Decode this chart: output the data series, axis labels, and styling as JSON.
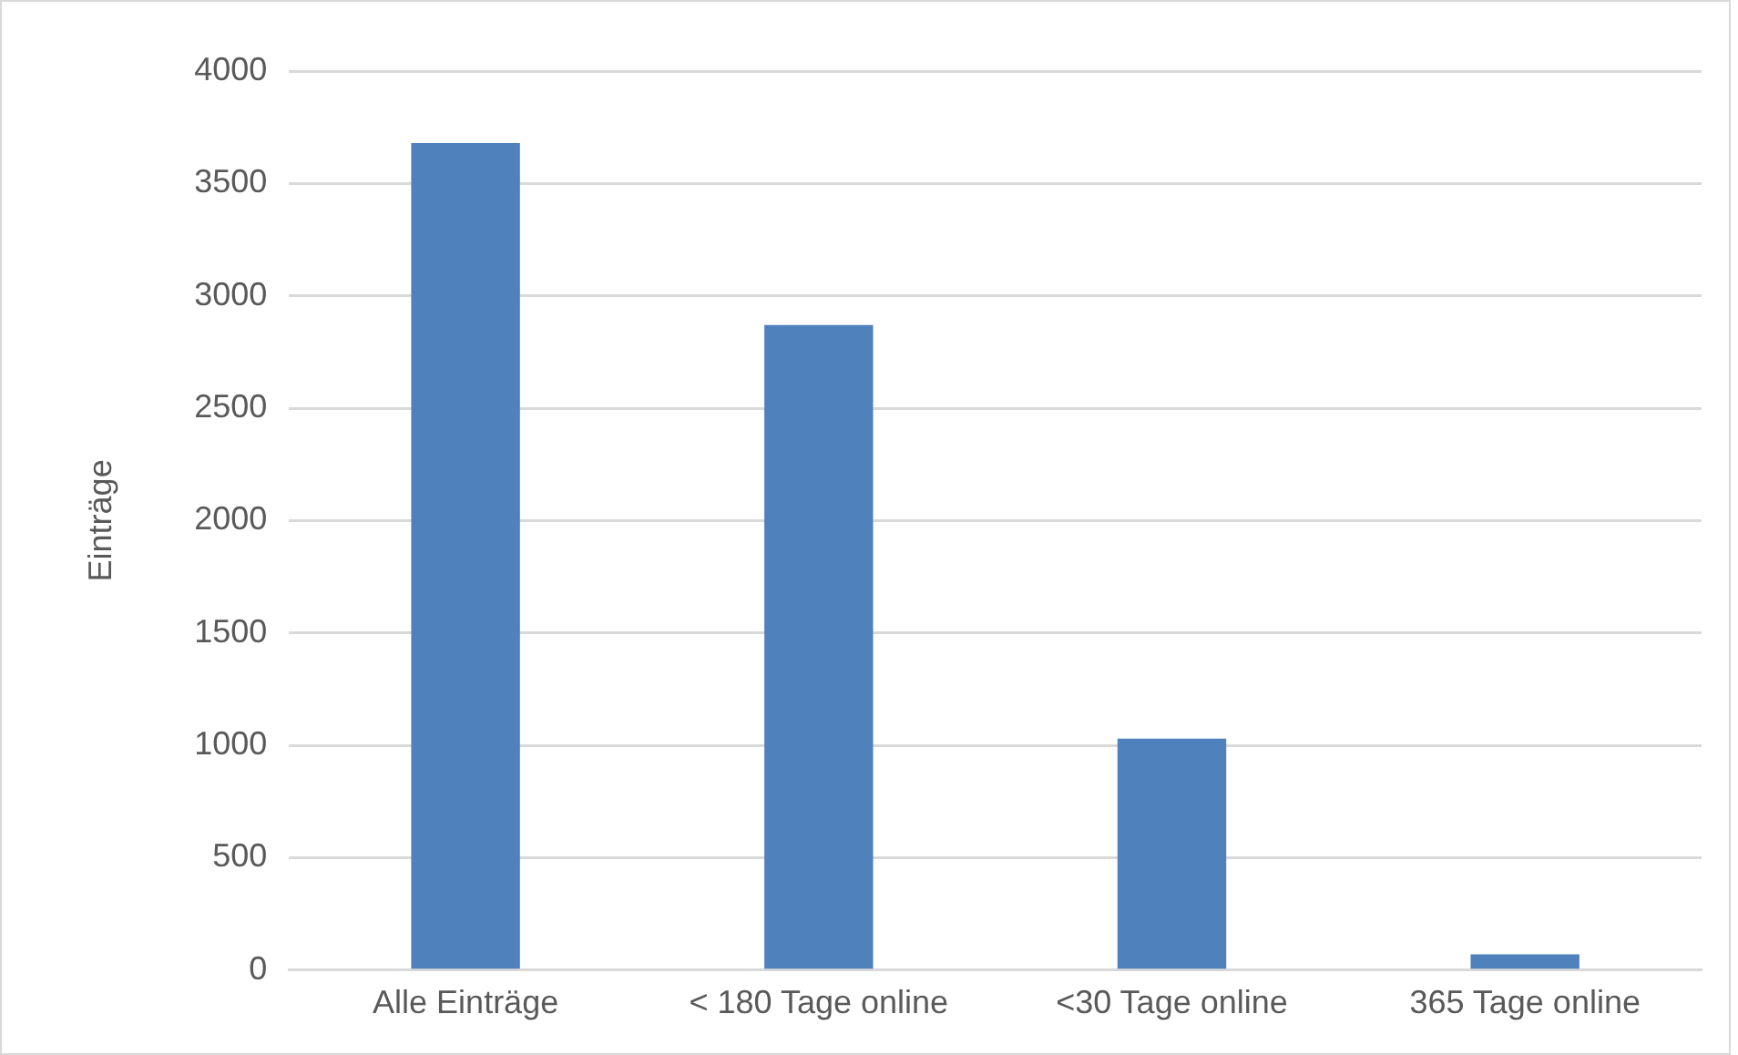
{
  "chart_data": {
    "type": "bar",
    "ylabel": "Einträge",
    "categories": [
      "Alle Einträge",
      "< 180 Tage online",
      "<30 Tage online",
      "365 Tage online"
    ],
    "values": [
      3680,
      2870,
      1030,
      70
    ],
    "color": "#4f81bd",
    "ylim": [
      0,
      4000
    ],
    "yticks": [
      0,
      500,
      1000,
      1500,
      2000,
      2500,
      3000,
      3500,
      4000
    ],
    "grid": "y",
    "legend": false
  }
}
